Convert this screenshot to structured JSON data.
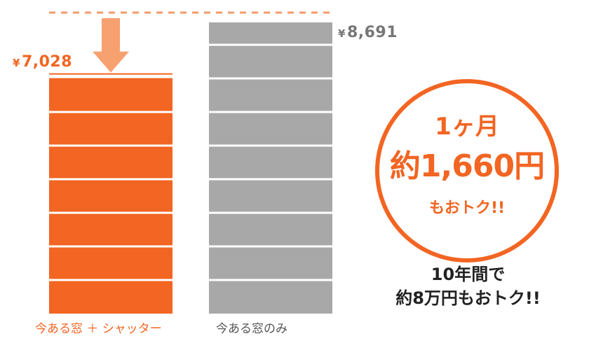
{
  "chart_data": {
    "type": "bar",
    "categories": [
      "今ある窓 ＋ シャッター",
      "今ある窓のみ"
    ],
    "values": [
      7028,
      8691
    ],
    "value_labels": [
      "7,028",
      "8,691"
    ],
    "currency_symbol": "¥",
    "ylim": [
      0,
      8691
    ],
    "grid": false,
    "colors": [
      "#f26522",
      "#a8a8a8"
    ],
    "reference_line_color": "#f79a6a",
    "arrow_color": "#f7a070"
  },
  "callout": {
    "line1": "1ヶ月",
    "line2": "約1,660円",
    "line3": "もおトク!!",
    "color": "#f26522"
  },
  "summary": {
    "line1": "10年間で",
    "line2": "約8万円もおトク!!"
  }
}
